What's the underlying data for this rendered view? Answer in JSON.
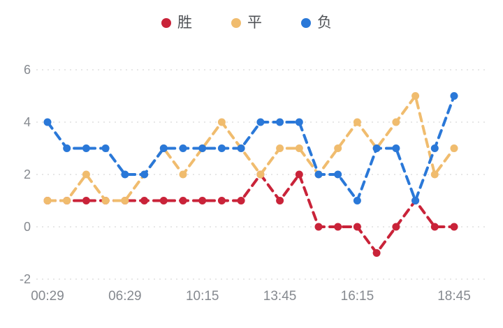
{
  "legend": {
    "items": [
      {
        "label": "胜",
        "color": "#c92339"
      },
      {
        "label": "平",
        "color": "#f0bc6e"
      },
      {
        "label": "负",
        "color": "#2a78d8"
      }
    ]
  },
  "colors": {
    "win_red": "#c92339",
    "draw_amber": "#f0bc6e",
    "loss_blue": "#2a78d8",
    "gridline": "#e7e7e7",
    "tick_text": "#85898f"
  },
  "chart_data": {
    "type": "line",
    "title": "",
    "xlabel": "",
    "ylabel": "",
    "num_points": 22,
    "x_tick_labels": [
      "00:29",
      "06:29",
      "10:15",
      "13:45",
      "16:15",
      "18:45"
    ],
    "x_tick_point_indices": [
      0,
      4,
      8,
      12,
      16,
      21
    ],
    "y_ticks": [
      6,
      4,
      2,
      0,
      -2
    ],
    "ylim": [
      -2,
      6
    ],
    "grid": "horizontal-dotted",
    "legend_position": "top",
    "line_style": "dashed-with-round-markers",
    "series": [
      {
        "name": "胜",
        "color": "#c92339",
        "values": [
          1,
          1,
          1,
          1,
          1,
          1,
          1,
          1,
          1,
          1,
          1,
          2,
          1,
          2,
          0,
          0,
          0,
          -1,
          0,
          1,
          0,
          0
        ]
      },
      {
        "name": "平",
        "color": "#f0bc6e",
        "values": [
          1,
          1,
          2,
          1,
          1,
          2,
          3,
          2,
          3,
          4,
          3,
          2,
          3,
          3,
          2,
          3,
          4,
          3,
          4,
          5,
          2,
          3
        ]
      },
      {
        "name": "负",
        "color": "#2a78d8",
        "values": [
          4,
          3,
          3,
          3,
          2,
          2,
          3,
          3,
          3,
          3,
          3,
          4,
          4,
          4,
          2,
          2,
          1,
          3,
          3,
          1,
          3,
          5
        ]
      }
    ]
  }
}
